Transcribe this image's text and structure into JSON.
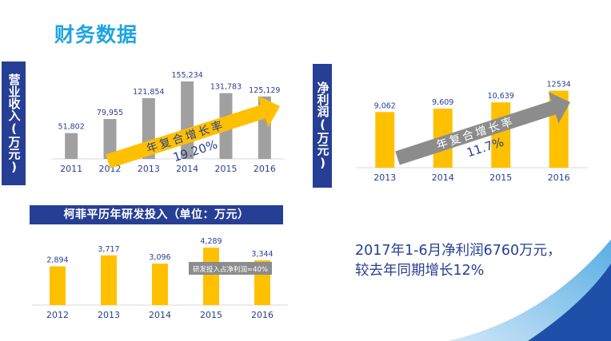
{
  "page": {
    "title": "财务数据",
    "summary": "2017年1-6月净利润6760万元，较去年同期增长12%"
  },
  "colors": {
    "brand_blue": "#1fa4e0",
    "navy": "#263f94",
    "gray_bar": "#a0a0a0",
    "gold_bar": "#ffc000",
    "arrow_orange": "#ffc000",
    "arrow_gray": "#8c8c8c"
  },
  "chart_data": [
    {
      "id": "revenue",
      "type": "bar",
      "side_label": "营业收入(万元)",
      "categories": [
        "2011",
        "2012",
        "2013",
        "2014",
        "2015",
        "2016"
      ],
      "values": [
        51802,
        79955,
        121854,
        155234,
        131783,
        125129
      ],
      "value_labels": [
        "51,802",
        "79,955",
        "121,854",
        "155,234",
        "131,783",
        "125,129"
      ],
      "ylim": [
        0,
        160000
      ],
      "annotation_line1": "年复合增长率",
      "annotation_line2": "19.20%"
    },
    {
      "id": "net-profit",
      "type": "bar",
      "side_label": "净利润(万元)",
      "categories": [
        "2013",
        "2014",
        "2015",
        "2016"
      ],
      "values": [
        9062,
        9609,
        10639,
        12534
      ],
      "value_labels": [
        "9,062",
        "9,609",
        "10,639",
        "12534"
      ],
      "ylim": [
        0,
        13000
      ],
      "annotation_line1": "年复合增长率",
      "annotation_line2": "11.7%"
    },
    {
      "id": "rd",
      "type": "bar",
      "title": "柯菲平历年研发投入（单位：万元）",
      "categories": [
        "2012",
        "2013",
        "2014",
        "2015",
        "2016"
      ],
      "values": [
        2894,
        3717,
        3096,
        4289,
        3344
      ],
      "value_labels": [
        "2,894",
        "3,717",
        "3,096",
        "4,289",
        "3,344"
      ],
      "ylim": [
        0,
        4300
      ],
      "annotation": "研发投入占净利润≈40%"
    }
  ]
}
